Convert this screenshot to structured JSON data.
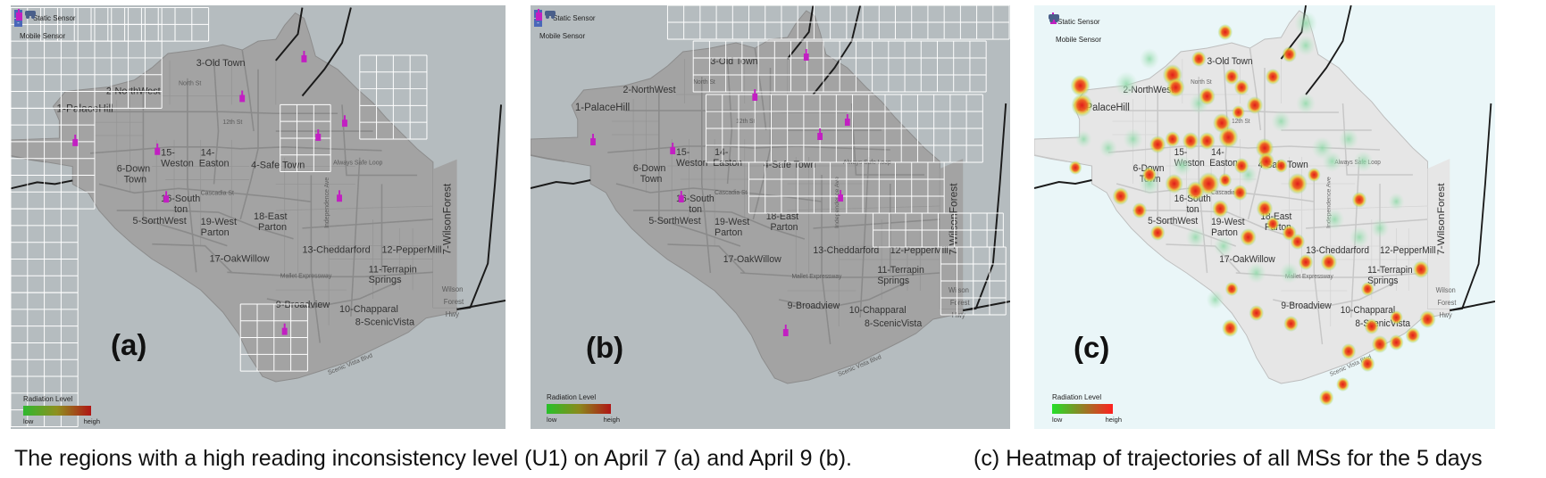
{
  "legend": {
    "static_sensor": "Static Sensor",
    "mobile_sensor": "Mobile Sensor",
    "zoom_in": "+",
    "zoom_out": "-"
  },
  "radiation": {
    "title": "Radiation Level",
    "low": "low",
    "high": "heigh"
  },
  "regions": [
    {
      "id": "r1",
      "label": "1-PalaceHill"
    },
    {
      "id": "r2",
      "label": "2-NorthWest"
    },
    {
      "id": "r3",
      "label": "3-Old Town"
    },
    {
      "id": "r4",
      "label": "4-Safe Town"
    },
    {
      "id": "r5",
      "label": "5-SorthWest"
    },
    {
      "id": "r6a",
      "label": "6-Down"
    },
    {
      "id": "r6b",
      "label": "Town"
    },
    {
      "id": "r7",
      "label": "7-WilsonForest"
    },
    {
      "id": "r8",
      "label": "8-ScenicVista"
    },
    {
      "id": "r9",
      "label": "9-Broadview"
    },
    {
      "id": "r10",
      "label": "10-Chapparal"
    },
    {
      "id": "r11a",
      "label": "11-Terrapin"
    },
    {
      "id": "r11b",
      "label": "Springs"
    },
    {
      "id": "r12",
      "label": "12-PepperMill"
    },
    {
      "id": "r13",
      "label": "13-Cheddarford"
    },
    {
      "id": "r14a",
      "label": "14-"
    },
    {
      "id": "r14b",
      "label": "Easton"
    },
    {
      "id": "r15a",
      "label": "15-"
    },
    {
      "id": "r15b",
      "label": "Weston"
    },
    {
      "id": "r16a",
      "label": "16-South"
    },
    {
      "id": "r16b",
      "label": "ton"
    },
    {
      "id": "r17",
      "label": "17-OakWillow"
    },
    {
      "id": "r18a",
      "label": "18-East"
    },
    {
      "id": "r18b",
      "label": "Parton"
    },
    {
      "id": "r19a",
      "label": "19-West"
    },
    {
      "id": "r19b",
      "label": "Parton"
    }
  ],
  "streets": [
    {
      "id": "s1",
      "label": "North St"
    },
    {
      "id": "s2",
      "label": "12th St"
    },
    {
      "id": "s3",
      "label": "Always Safe Loop"
    },
    {
      "id": "s4",
      "label": "Cascadia St"
    },
    {
      "id": "s5",
      "label": "Mallet Expressway"
    },
    {
      "id": "s6",
      "label": "Scenic Vista Blvd"
    },
    {
      "id": "s7",
      "label": "Independence Ave"
    },
    {
      "id": "s8",
      "label": "Wilson"
    },
    {
      "id": "s9",
      "label": "Forest"
    },
    {
      "id": "s10",
      "label": "Hwy"
    }
  ],
  "panels": {
    "a": {
      "label": "(a)"
    },
    "b": {
      "label": "(b)"
    },
    "c": {
      "label": "(c)"
    }
  },
  "captions": {
    "left": "The regions with a high reading inconsistency level (U1) on April 7 (a) and April 9 (b).",
    "right": "(c) Heatmap of trajectories of all MSs for the 5 days"
  },
  "colors": {
    "map_land": "#a3a3a3",
    "map_water": "#b5bcbf",
    "map_water_c": "#eaf6f8",
    "map_land_c": "#e6e6e6",
    "grid": "#ffffff",
    "sensor": "#c21fc2",
    "heat_low": "#2fd33a",
    "heat_high": "#e01b1b"
  }
}
